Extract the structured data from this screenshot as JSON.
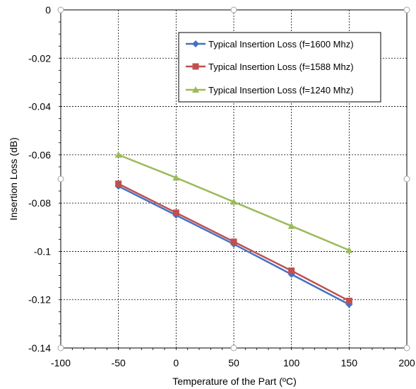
{
  "colors": {
    "series_1600": "#4472C4",
    "series_1588": "#C0504D",
    "series_1240": "#9BBB59",
    "grid": "#000000",
    "handle": "#A6A6A6"
  },
  "chart_data": {
    "type": "line",
    "title": "",
    "xlabel": "Temperature of the Part (ºC)",
    "ylabel": "Insertion Loss (dB)",
    "xlim": [
      -100,
      200
    ],
    "ylim": [
      -0.14,
      0
    ],
    "xticks": [
      -100,
      -50,
      0,
      50,
      100,
      150,
      200
    ],
    "yticks": [
      0,
      -0.02,
      -0.04,
      -0.06,
      -0.08,
      -0.1,
      -0.12,
      -0.14
    ],
    "xtick_labels": [
      "-100",
      "-50",
      "0",
      "50",
      "100",
      "150",
      "200"
    ],
    "ytick_labels": [
      "0",
      "-0.02",
      "-0.04",
      "-0.06",
      "-0.08",
      "-0.1",
      "-0.12",
      "-0.14"
    ],
    "grid": true,
    "legend_position": "top-right",
    "x": [
      -50,
      0,
      50,
      100,
      150
    ],
    "series": [
      {
        "name": "Typical Insertion Loss (f=1600 Mhz)",
        "marker": "diamond",
        "color": "#4472C4",
        "values": [
          -0.073,
          -0.085,
          -0.097,
          -0.1095,
          -0.122
        ]
      },
      {
        "name": "Typical Insertion Loss (f=1588 Mhz)",
        "marker": "square",
        "color": "#C0504D",
        "values": [
          -0.072,
          -0.084,
          -0.096,
          -0.108,
          -0.1205
        ]
      },
      {
        "name": "Typical Insertion Loss (f=1240 Mhz)",
        "marker": "triangle",
        "color": "#9BBB59",
        "values": [
          -0.06,
          -0.0695,
          -0.0795,
          -0.0895,
          -0.0995
        ]
      }
    ]
  }
}
